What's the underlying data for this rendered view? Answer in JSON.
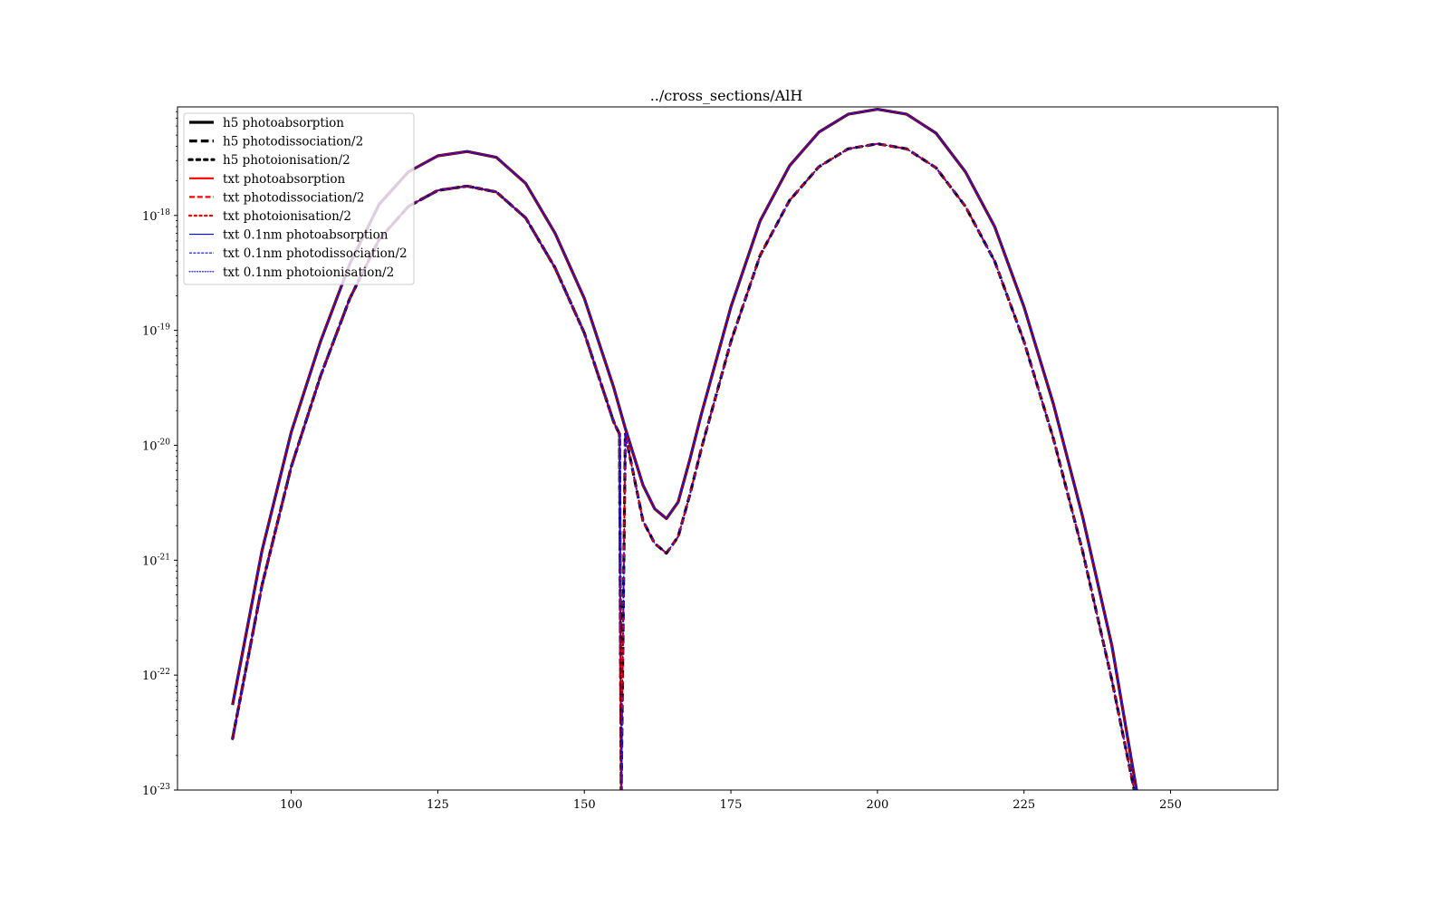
{
  "chart_data": {
    "type": "line",
    "title": "../cross_sections/AlH",
    "xlabel": "",
    "ylabel": "",
    "xlim": [
      80.6,
      268.3
    ],
    "ylim": [
      1e-23,
      8.8e-18
    ],
    "yscale": "log",
    "grid": false,
    "legend_position": "top-left",
    "x_ticks": [
      {
        "value": 100,
        "label": "100"
      },
      {
        "value": 125,
        "label": "125"
      },
      {
        "value": 150,
        "label": "150"
      },
      {
        "value": 175,
        "label": "175"
      },
      {
        "value": 200,
        "label": "200"
      },
      {
        "value": 225,
        "label": "225"
      },
      {
        "value": 250,
        "label": "250"
      }
    ],
    "y_ticks": [
      {
        "value": 1e-23,
        "base": "10",
        "exp": "-23"
      },
      {
        "value": 1e-22,
        "base": "10",
        "exp": "-22"
      },
      {
        "value": 1e-21,
        "base": "10",
        "exp": "-21"
      },
      {
        "value": 1e-20,
        "base": "10",
        "exp": "-20"
      },
      {
        "value": 1e-19,
        "base": "10",
        "exp": "-19"
      },
      {
        "value": 1e-18,
        "base": "10",
        "exp": "-18"
      }
    ],
    "series": [
      {
        "name": "h5 photoabsorption",
        "color": "#000000",
        "style": "solid",
        "width": 3.2,
        "x": [
          90,
          95,
          100,
          105,
          110,
          115,
          120,
          125,
          130,
          135,
          140,
          145,
          150,
          155,
          157,
          160,
          162,
          164,
          166,
          168,
          170,
          175,
          180,
          185,
          190,
          195,
          200,
          205,
          210,
          215,
          220,
          225,
          230,
          235,
          240,
          244.2
        ],
        "y": [
          5.5e-23,
          1.2e-21,
          1.3e-20,
          8e-20,
          3.8e-19,
          1.25e-18,
          2.4e-18,
          3.3e-18,
          3.6e-18,
          3.2e-18,
          1.9e-18,
          7e-19,
          1.9e-19,
          3.2e-20,
          1.4e-20,
          4.5e-21,
          2.8e-21,
          2.3e-21,
          3.2e-21,
          7.5e-21,
          1.9e-20,
          1.6e-19,
          9e-19,
          2.7e-18,
          5.3e-18,
          7.6e-18,
          8.4e-18,
          7.6e-18,
          5.2e-18,
          2.4e-18,
          8e-19,
          1.6e-19,
          2.3e-20,
          2.4e-21,
          1.8e-22,
          1e-23
        ]
      },
      {
        "name": "h5 photodissociation/2",
        "color": "#000000",
        "style": "dashed",
        "width": 3.2,
        "x": [
          90,
          95,
          100,
          105,
          110,
          115,
          120,
          125,
          130,
          135,
          140,
          145,
          150,
          155,
          156,
          156.3,
          157,
          160,
          162,
          164,
          166,
          168,
          170,
          175,
          180,
          185,
          190,
          195,
          200,
          205,
          210,
          215,
          220,
          225,
          230,
          235,
          240,
          243.8
        ],
        "y": [
          2.8e-23,
          6e-22,
          6.5e-21,
          4e-20,
          1.9e-19,
          6.2e-19,
          1.2e-18,
          1.65e-18,
          1.8e-18,
          1.6e-18,
          9.5e-19,
          3.5e-19,
          9.5e-20,
          1.6e-20,
          1.25e-20,
          1e-23,
          1.25e-20,
          2.2e-21,
          1.4e-21,
          1.15e-21,
          1.6e-21,
          3.7e-21,
          9.5e-21,
          8e-20,
          4.5e-19,
          1.35e-18,
          2.65e-18,
          3.8e-18,
          4.2e-18,
          3.8e-18,
          2.6e-18,
          1.2e-18,
          4e-19,
          8e-20,
          1.15e-20,
          1.2e-21,
          9e-23,
          1e-23
        ]
      },
      {
        "name": "h5 photoionisation/2",
        "color": "#000000",
        "style": "dotted",
        "width": 3.2,
        "x": [
          90,
          95,
          100,
          105,
          110,
          115,
          120,
          125,
          130,
          135,
          140,
          145,
          150,
          155,
          156,
          156.3
        ],
        "y": [
          2.8e-23,
          6e-22,
          6.5e-21,
          4e-20,
          1.9e-19,
          6.2e-19,
          1.2e-18,
          1.65e-18,
          1.8e-18,
          1.6e-18,
          9.5e-19,
          3.5e-19,
          9.5e-20,
          1.6e-20,
          1.25e-20,
          1e-23
        ]
      },
      {
        "name": "txt photoabsorption",
        "color": "#ff0000",
        "style": "solid",
        "width": 2.2,
        "x": [
          90,
          95,
          100,
          105,
          110,
          115,
          120,
          125,
          130,
          135,
          140,
          145,
          150,
          155,
          157,
          160,
          162,
          164,
          166,
          168,
          170,
          175,
          180,
          185,
          190,
          195,
          200,
          205,
          210,
          215,
          220,
          225,
          230,
          235,
          240,
          244.2
        ],
        "y": [
          5.5e-23,
          1.2e-21,
          1.3e-20,
          8e-20,
          3.8e-19,
          1.25e-18,
          2.4e-18,
          3.3e-18,
          3.6e-18,
          3.2e-18,
          1.9e-18,
          7e-19,
          1.9e-19,
          3.2e-20,
          1.4e-20,
          4.5e-21,
          2.8e-21,
          2.3e-21,
          3.2e-21,
          7.5e-21,
          1.9e-20,
          1.6e-19,
          9e-19,
          2.7e-18,
          5.3e-18,
          7.6e-18,
          8.4e-18,
          7.6e-18,
          5.2e-18,
          2.4e-18,
          8e-19,
          1.6e-19,
          2.3e-20,
          2.4e-21,
          1.8e-22,
          1e-23
        ]
      },
      {
        "name": "txt photodissociation/2",
        "color": "#ff0000",
        "style": "dashed",
        "width": 2.2,
        "x": [
          90,
          95,
          100,
          105,
          110,
          115,
          120,
          125,
          130,
          135,
          140,
          145,
          150,
          155,
          156,
          156.3,
          157,
          160,
          162,
          164,
          166,
          168,
          170,
          175,
          180,
          185,
          190,
          195,
          200,
          205,
          210,
          215,
          220,
          225,
          230,
          235,
          240,
          243.8
        ],
        "y": [
          2.8e-23,
          6e-22,
          6.5e-21,
          4e-20,
          1.9e-19,
          6.2e-19,
          1.2e-18,
          1.65e-18,
          1.8e-18,
          1.6e-18,
          9.5e-19,
          3.5e-19,
          9.5e-20,
          1.6e-20,
          1.25e-20,
          1e-23,
          1.25e-20,
          2.2e-21,
          1.4e-21,
          1.15e-21,
          1.6e-21,
          3.7e-21,
          9.5e-21,
          8e-20,
          4.5e-19,
          1.35e-18,
          2.65e-18,
          3.8e-18,
          4.2e-18,
          3.8e-18,
          2.6e-18,
          1.2e-18,
          4e-19,
          8e-20,
          1.15e-20,
          1.2e-21,
          9e-23,
          1e-23
        ]
      },
      {
        "name": "txt photoionisation/2",
        "color": "#ff0000",
        "style": "dotted",
        "width": 2.2,
        "x": [
          90,
          95,
          100,
          105,
          110,
          115,
          120,
          125,
          130,
          135,
          140,
          145,
          150,
          155,
          156,
          156.3
        ],
        "y": [
          2.8e-23,
          6e-22,
          6.5e-21,
          4e-20,
          1.9e-19,
          6.2e-19,
          1.2e-18,
          1.65e-18,
          1.8e-18,
          1.6e-18,
          9.5e-19,
          3.5e-19,
          9.5e-20,
          1.6e-20,
          1.25e-20,
          1e-23
        ]
      },
      {
        "name": "txt 0.1nm photoabsorption",
        "color": "#0000ff",
        "style": "solid",
        "width": 1.1,
        "x": [
          90,
          95,
          100,
          105,
          110,
          115,
          120,
          125,
          130,
          135,
          140,
          145,
          150,
          155,
          157,
          160,
          162,
          164,
          166,
          168,
          170,
          175,
          180,
          185,
          190,
          195,
          200,
          205,
          210,
          215,
          220,
          225,
          230,
          235,
          240,
          244.2
        ],
        "y": [
          5.5e-23,
          1.2e-21,
          1.3e-20,
          8e-20,
          3.8e-19,
          1.25e-18,
          2.4e-18,
          3.3e-18,
          3.6e-18,
          3.2e-18,
          1.9e-18,
          7e-19,
          1.9e-19,
          3.2e-20,
          1.4e-20,
          4.5e-21,
          2.8e-21,
          2.3e-21,
          3.2e-21,
          7.5e-21,
          1.9e-20,
          1.6e-19,
          9e-19,
          2.7e-18,
          5.3e-18,
          7.6e-18,
          8.4e-18,
          7.6e-18,
          5.2e-18,
          2.4e-18,
          8e-19,
          1.6e-19,
          2.3e-20,
          2.4e-21,
          1.8e-22,
          1e-23
        ]
      },
      {
        "name": "txt 0.1nm photodissociation/2",
        "color": "#0000ff",
        "style": "dashed",
        "width": 1.1,
        "x": [
          90,
          95,
          100,
          105,
          110,
          115,
          120,
          125,
          130,
          135,
          140,
          145,
          150,
          155,
          156,
          156.3,
          157,
          160,
          162,
          164,
          166,
          168,
          170,
          175,
          180,
          185,
          190,
          195,
          200,
          205,
          210,
          215,
          220,
          225,
          230,
          235,
          240,
          243.8
        ],
        "y": [
          2.8e-23,
          6e-22,
          6.5e-21,
          4e-20,
          1.9e-19,
          6.2e-19,
          1.2e-18,
          1.65e-18,
          1.8e-18,
          1.6e-18,
          9.5e-19,
          3.5e-19,
          9.5e-20,
          1.6e-20,
          1.25e-20,
          1e-23,
          1.25e-20,
          2.2e-21,
          1.4e-21,
          1.15e-21,
          1.6e-21,
          3.7e-21,
          9.5e-21,
          8e-20,
          4.5e-19,
          1.35e-18,
          2.65e-18,
          3.8e-18,
          4.2e-18,
          3.8e-18,
          2.6e-18,
          1.2e-18,
          4e-19,
          8e-20,
          1.15e-20,
          1.2e-21,
          9e-23,
          1e-23
        ]
      },
      {
        "name": "txt 0.1nm photoionisation/2",
        "color": "#0000ff",
        "style": "dotted",
        "width": 1.1,
        "x": [
          90,
          95,
          100,
          105,
          110,
          115,
          120,
          125,
          130,
          135,
          140,
          145,
          150,
          155,
          156,
          156.3
        ],
        "y": [
          2.8e-23,
          6e-22,
          6.5e-21,
          4e-20,
          1.9e-19,
          6.2e-19,
          1.2e-18,
          1.65e-18,
          1.8e-18,
          1.6e-18,
          9.5e-19,
          3.5e-19,
          9.5e-20,
          1.6e-20,
          1.25e-20,
          1e-23
        ]
      }
    ]
  }
}
